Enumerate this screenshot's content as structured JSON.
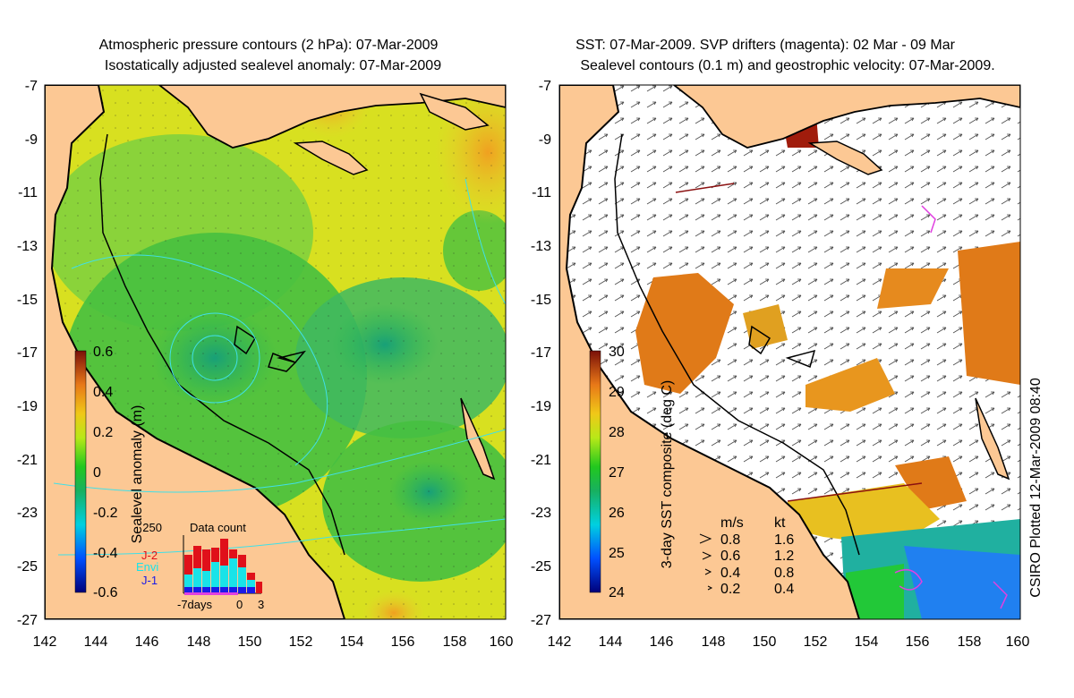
{
  "left_panel": {
    "title_line1": "Atmospheric pressure contours (2 hPa): 07-Mar-2009",
    "title_line2": "Isostatically adjusted sealevel anomaly: 07-Mar-2009",
    "colorbar": {
      "label": "Sealevel anomaly (m)",
      "ticks": [
        "0.6",
        "0.4",
        "0.2",
        "0",
        "-0.2",
        "-0.4",
        "-0.6"
      ]
    },
    "data_count": {
      "title": "Data count",
      "ymax_label": "250",
      "legend": [
        {
          "name": "J-2",
          "color": "#e0101a"
        },
        {
          "name": "Envi",
          "color": "#19e3e8"
        },
        {
          "name": "J-1",
          "color": "#1a1ae6"
        }
      ],
      "x_labels": [
        "-7days",
        "0",
        "3"
      ]
    }
  },
  "right_panel": {
    "title_line1": "SST: 07-Mar-2009. SVP drifters (magenta): 02 Mar - 09 Mar",
    "title_line2": "Sealevel contours (0.1 m) and geostrophic velocity: 07-Mar-2009.",
    "colorbar": {
      "label": "3-day SST composite (deg C)",
      "ticks": [
        "30",
        "29",
        "28",
        "27",
        "26",
        "25",
        "24"
      ]
    },
    "velocity_legend": {
      "header_ms": "m/s",
      "header_kt": "kt",
      "rows": [
        {
          "ms": "0.8",
          "kt": "1.6"
        },
        {
          "ms": "0.6",
          "kt": "1.2"
        },
        {
          "ms": "0.4",
          "kt": "0.8"
        },
        {
          "ms": "0.2",
          "kt": "0.4"
        }
      ]
    }
  },
  "axes": {
    "lat_ticks": [
      "-7",
      "-9",
      "-11",
      "-13",
      "-15",
      "-17",
      "-19",
      "-21",
      "-23",
      "-25",
      "-27"
    ],
    "lon_ticks": [
      "142",
      "144",
      "146",
      "148",
      "150",
      "152",
      "154",
      "156",
      "158",
      "160"
    ]
  },
  "credit": "CSIRO Plotted 12-Mar-2009 08:40",
  "colors": {
    "land": "#fcc894",
    "coastline": "#000000",
    "sst_warm": "#e07a18"
  }
}
